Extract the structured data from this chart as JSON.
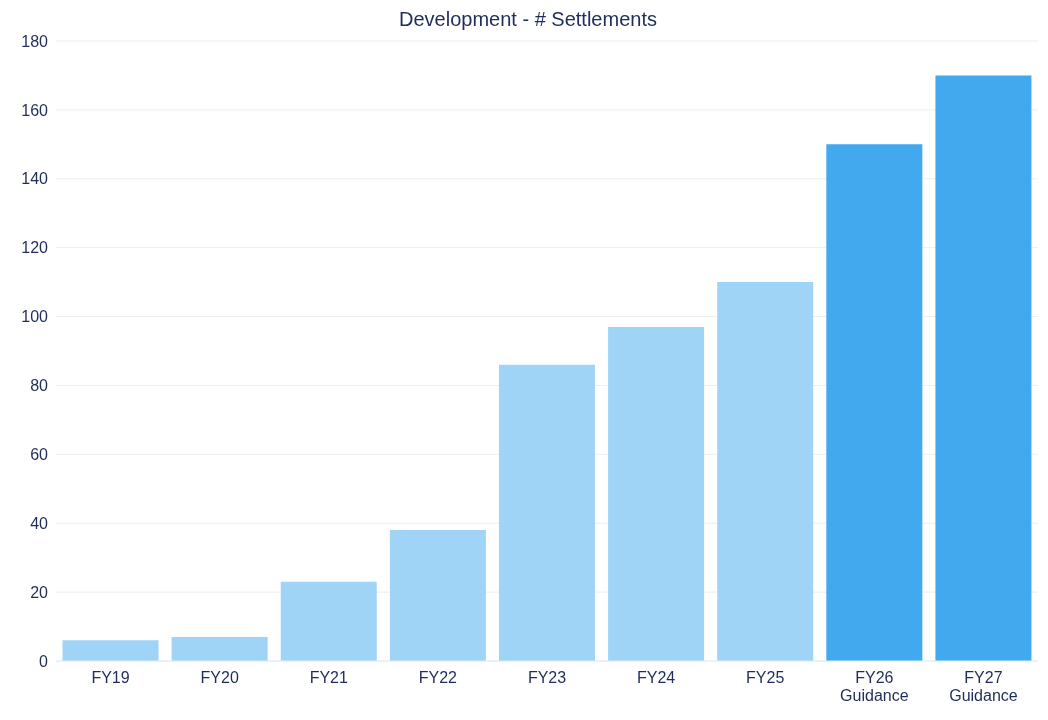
{
  "chart_data": {
    "type": "bar",
    "title": "Development - # Settlements",
    "categories": [
      "FY19",
      "FY20",
      "FY21",
      "FY22",
      "FY23",
      "FY24",
      "FY25",
      "FY26 Guidance",
      "FY27 Guidance"
    ],
    "values": [
      6,
      7,
      23,
      38,
      86,
      97,
      110,
      150,
      170
    ],
    "colors": [
      "#a0d4f7",
      "#a0d4f7",
      "#a0d4f7",
      "#a0d4f7",
      "#a0d4f7",
      "#a0d4f7",
      "#a0d4f7",
      "#42a9ef",
      "#42a9ef"
    ],
    "ylim": [
      0,
      180
    ],
    "yticks": [
      0,
      20,
      40,
      60,
      80,
      100,
      120,
      140,
      160,
      180
    ],
    "grid": "y"
  }
}
